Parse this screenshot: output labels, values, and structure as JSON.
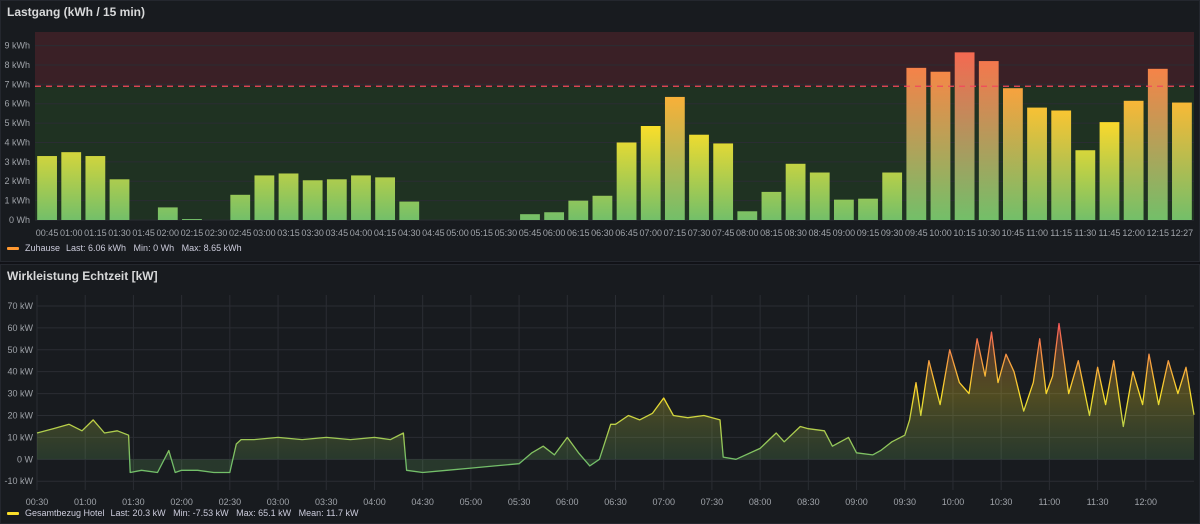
{
  "colors": {
    "panel_bg": "#181b1f",
    "grid": "#2a2d33",
    "axis_text": "#9fa3a9",
    "threshold_line": "#f2495c",
    "low": "#73bf69",
    "mid": "#fade2a",
    "high": "#f2495c",
    "green_zone": "#1f3222",
    "red_zone": "#3a2026",
    "legend_top": "#ff9830",
    "legend_bottom": "#fade2a"
  },
  "top": {
    "title": "Lastgang (kWh / 15 min)",
    "legend": {
      "series": "Zuhause",
      "stats": "Last: 6.06 kWh   Min: 0 Wh   Max: 8.65 kWh"
    }
  },
  "bottom": {
    "title": "Wirkleistung Echtzeit [kW]",
    "legend": {
      "series": "Gesamtbezug Hotel",
      "stats": "Last: 20.3 kW   Min: -7.53 kW   Max: 65.1 kW   Mean: 11.7 kW"
    }
  },
  "chart_data": [
    {
      "type": "bar",
      "title": "Lastgang (kWh / 15 min)",
      "unit": "kWh",
      "ylim": [
        0,
        9.7
      ],
      "yticks": [
        0,
        1,
        2,
        3,
        4,
        5,
        6,
        7,
        8,
        9
      ],
      "ytick_labels": [
        "0 Wh",
        "1 kWh",
        "2 kWh",
        "3 kWh",
        "4 kWh",
        "5 kWh",
        "6 kWh",
        "7 kWh",
        "8 kWh",
        "9 kWh"
      ],
      "threshold": 6.9,
      "categories": [
        "00:45",
        "01:00",
        "01:15",
        "01:30",
        "01:45",
        "02:00",
        "02:15",
        "02:30",
        "02:45",
        "03:00",
        "03:15",
        "03:30",
        "03:45",
        "04:00",
        "04:15",
        "04:30",
        "04:45",
        "05:00",
        "05:15",
        "05:30",
        "05:45",
        "06:00",
        "06:15",
        "06:30",
        "06:45",
        "07:00",
        "07:15",
        "07:30",
        "07:45",
        "08:00",
        "08:15",
        "08:30",
        "08:45",
        "09:00",
        "09:15",
        "09:30",
        "09:45",
        "10:00",
        "10:15",
        "10:30",
        "10:45",
        "11:00",
        "11:15",
        "11:30",
        "11:45",
        "12:00",
        "12:15",
        "12:27"
      ],
      "series": [
        {
          "name": "Zuhause",
          "values": [
            3.3,
            3.5,
            3.3,
            2.1,
            0,
            0.65,
            0.05,
            0,
            1.3,
            2.3,
            2.4,
            2.05,
            2.1,
            2.3,
            2.2,
            0.95,
            0,
            0,
            0,
            0,
            0.3,
            0.4,
            1.0,
            1.25,
            4.0,
            4.85,
            6.35,
            4.4,
            3.95,
            0.45,
            1.45,
            2.9,
            2.45,
            1.05,
            1.1,
            2.45,
            7.85,
            7.65,
            8.65,
            8.2,
            6.8,
            5.8,
            5.65,
            3.6,
            5.05,
            6.15,
            7.8,
            6.06
          ]
        }
      ]
    },
    {
      "type": "line",
      "title": "Wirkleistung Echtzeit [kW]",
      "unit": "kW",
      "ylim": [
        -14,
        75
      ],
      "yticks": [
        -10,
        0,
        10,
        20,
        30,
        40,
        50,
        60,
        70
      ],
      "ytick_labels": [
        "-10 kW",
        "0 W",
        "10 kW",
        "20 kW",
        "30 kW",
        "40 kW",
        "50 kW",
        "60 kW",
        "70 kW"
      ],
      "xlim": [
        "00:30",
        "12:30"
      ],
      "x_tick_labels": [
        "00:30",
        "01:00",
        "01:30",
        "02:00",
        "02:30",
        "03:00",
        "03:30",
        "04:00",
        "04:30",
        "05:00",
        "05:30",
        "06:00",
        "06:30",
        "07:00",
        "07:30",
        "08:00",
        "08:30",
        "09:00",
        "09:30",
        "10:00",
        "10:30",
        "11:00",
        "11:30",
        "12:00"
      ],
      "series": [
        {
          "name": "Gesamtbezug Hotel",
          "x": [
            "00:30",
            "00:40",
            "00:50",
            "00:58",
            "01:05",
            "01:12",
            "01:20",
            "01:27",
            "01:28",
            "01:35",
            "01:45",
            "01:52",
            "01:56",
            "02:00",
            "02:10",
            "02:20",
            "02:30",
            "02:34",
            "02:37",
            "02:45",
            "03:00",
            "03:15",
            "03:30",
            "03:45",
            "04:00",
            "04:10",
            "04:18",
            "04:20",
            "04:30",
            "04:45",
            "05:00",
            "05:15",
            "05:30",
            "05:38",
            "05:45",
            "05:52",
            "06:00",
            "06:07",
            "06:14",
            "06:20",
            "06:27",
            "06:30",
            "06:38",
            "06:45",
            "06:53",
            "07:00",
            "07:06",
            "07:15",
            "07:25",
            "07:35",
            "07:37",
            "07:45",
            "08:00",
            "08:10",
            "08:15",
            "08:25",
            "08:30",
            "08:40",
            "08:45",
            "08:55",
            "09:00",
            "09:10",
            "09:15",
            "09:22",
            "09:30",
            "09:33",
            "09:37",
            "09:40",
            "09:45",
            "09:52",
            "09:58",
            "10:04",
            "10:10",
            "10:15",
            "10:20",
            "10:24",
            "10:28",
            "10:33",
            "10:38",
            "10:44",
            "10:50",
            "10:54",
            "10:58",
            "11:02",
            "11:06",
            "11:12",
            "11:18",
            "11:25",
            "11:30",
            "11:35",
            "11:40",
            "11:46",
            "11:52",
            "11:58",
            "12:02",
            "12:08",
            "12:14",
            "12:20",
            "12:25",
            "12:30"
          ],
          "values": [
            12,
            14,
            16,
            13,
            18,
            12,
            13,
            11,
            -6,
            -5,
            -6,
            4,
            -6,
            -5,
            -5,
            -6,
            -6,
            7,
            9,
            9,
            10,
            9,
            10,
            9,
            10,
            9,
            12,
            -5,
            -6,
            -5,
            -4,
            -3,
            -2,
            3,
            6,
            2,
            10,
            3,
            -3,
            0,
            16,
            16,
            20,
            18,
            21,
            28,
            20,
            19,
            20,
            18,
            1,
            0,
            5,
            12,
            8,
            15,
            14,
            13,
            6,
            10,
            3,
            2,
            4,
            8,
            11,
            18,
            35,
            20,
            45,
            25,
            50,
            35,
            30,
            55,
            38,
            58,
            35,
            48,
            40,
            22,
            35,
            55,
            30,
            38,
            62,
            30,
            45,
            20,
            42,
            25,
            45,
            15,
            40,
            25,
            48,
            25,
            45,
            30,
            42,
            20.3
          ]
        }
      ]
    }
  ]
}
